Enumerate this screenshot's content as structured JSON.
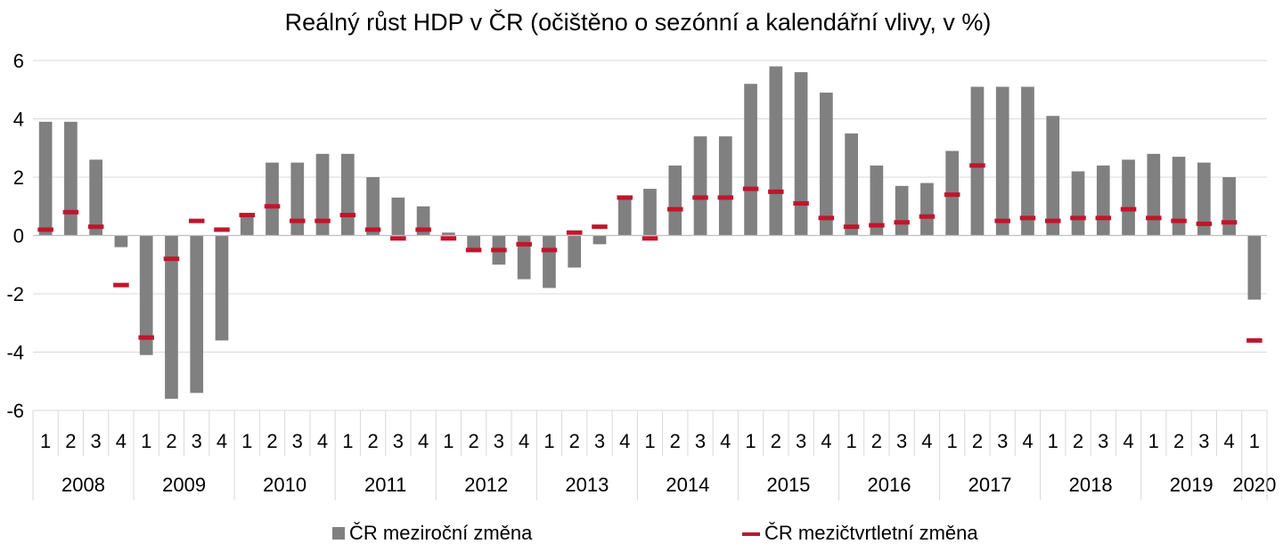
{
  "chart_data": {
    "type": "bar",
    "title": "Reálný růst HDP v ČR (očištěno o sezónní a kalendářní vlivy, v %)",
    "xlabel": "",
    "ylabel": "",
    "ylim": [
      -6,
      6
    ],
    "yticks": [
      "-6",
      "-4",
      "-2",
      "0",
      "2",
      "4",
      "6"
    ],
    "grid": true,
    "legend_position": "bottom",
    "quarter_labels": [
      "1",
      "2",
      "3",
      "4",
      "1",
      "2",
      "3",
      "4",
      "1",
      "2",
      "3",
      "4",
      "1",
      "2",
      "3",
      "4",
      "1",
      "2",
      "3",
      "4",
      "1",
      "2",
      "3",
      "4",
      "1",
      "2",
      "3",
      "4",
      "1",
      "2",
      "3",
      "4",
      "1",
      "2",
      "3",
      "4",
      "1",
      "2",
      "3",
      "4",
      "1",
      "2",
      "3",
      "4",
      "1",
      "2",
      "3",
      "4",
      "1"
    ],
    "years": [
      {
        "label": "2008",
        "quarters": 4
      },
      {
        "label": "2009",
        "quarters": 4
      },
      {
        "label": "2010",
        "quarters": 4
      },
      {
        "label": "2011",
        "quarters": 4
      },
      {
        "label": "2012",
        "quarters": 4
      },
      {
        "label": "2013",
        "quarters": 4
      },
      {
        "label": "2014",
        "quarters": 4
      },
      {
        "label": "2015",
        "quarters": 4
      },
      {
        "label": "2016",
        "quarters": 4
      },
      {
        "label": "2017",
        "quarters": 4
      },
      {
        "label": "2018",
        "quarters": 4
      },
      {
        "label": "2019",
        "quarters": 4
      },
      {
        "label": "2020",
        "quarters": 1
      }
    ],
    "series": [
      {
        "name": "ČR meziroční změna",
        "kind": "bar",
        "color": "#808080",
        "values": [
          3.9,
          3.9,
          2.6,
          -0.4,
          -4.1,
          -5.6,
          -5.4,
          -3.6,
          0.7,
          2.5,
          2.5,
          2.8,
          2.8,
          2.0,
          1.3,
          1.0,
          0.1,
          -0.5,
          -1.0,
          -1.5,
          -1.8,
          -1.1,
          -0.3,
          1.3,
          1.6,
          2.4,
          3.4,
          3.4,
          5.2,
          5.8,
          5.6,
          4.9,
          3.5,
          2.4,
          1.7,
          1.8,
          2.9,
          5.1,
          5.1,
          5.1,
          4.1,
          2.2,
          2.4,
          2.6,
          2.8,
          2.7,
          2.5,
          2.0,
          -2.2
        ]
      },
      {
        "name": "ČR mezičtvrtletní změna",
        "kind": "marker",
        "color": "#c0162c",
        "values": [
          0.2,
          0.8,
          0.3,
          -1.7,
          -3.5,
          -0.8,
          0.5,
          0.2,
          0.7,
          1.0,
          0.5,
          0.5,
          0.7,
          0.2,
          -0.1,
          0.2,
          -0.1,
          -0.5,
          -0.5,
          -0.3,
          -0.5,
          0.1,
          0.3,
          1.3,
          -0.1,
          0.9,
          1.3,
          1.3,
          1.6,
          1.5,
          1.1,
          0.6,
          0.3,
          0.35,
          0.45,
          0.65,
          1.4,
          2.4,
          0.5,
          0.6,
          0.5,
          0.6,
          0.6,
          0.9,
          0.6,
          0.5,
          0.4,
          0.45,
          -3.6
        ]
      }
    ]
  }
}
